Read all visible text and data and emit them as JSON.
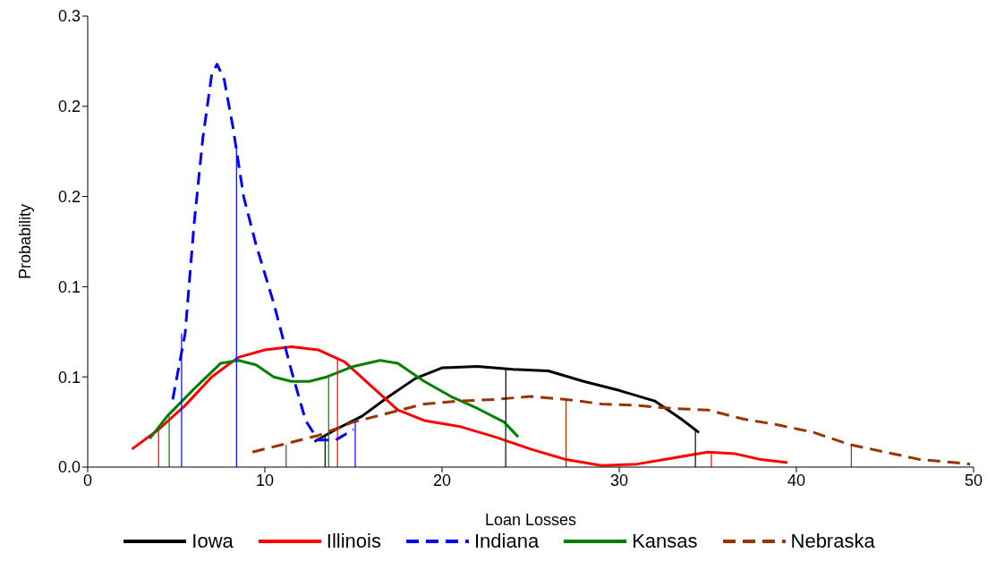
{
  "chart_data": {
    "type": "line",
    "xlabel": "Loan Losses",
    "ylabel": "Probability",
    "xlim": [
      0,
      50
    ],
    "xticks": [
      0,
      10,
      20,
      30,
      40,
      50
    ],
    "ylim": [
      0,
      0.3
    ],
    "yticks": [
      {
        "value": 0,
        "label": "0.0"
      },
      {
        "value": 0.06,
        "label": "0.1"
      },
      {
        "value": 0.12,
        "label": "0.1"
      },
      {
        "value": 0.18,
        "label": "0.2"
      },
      {
        "value": 0.24,
        "label": "0.2"
      },
      {
        "value": 0.3,
        "label": "0.3"
      }
    ],
    "grid": false,
    "legend": "bottom",
    "marker": "none",
    "series": [
      {
        "name": "Iowa",
        "color": "#000000",
        "line_style": "solid",
        "x": [
          12.8,
          14,
          15.5,
          17,
          18.5,
          20,
          22,
          24,
          26,
          28,
          30,
          32,
          33.5,
          34.5
        ],
        "values": [
          0.017,
          0.025,
          0.034,
          0.047,
          0.059,
          0.066,
          0.067,
          0.065,
          0.064,
          0.057,
          0.051,
          0.044,
          0.032,
          0.023
        ]
      },
      {
        "name": "Illinois",
        "color": "#ff0000",
        "line_style": "solid",
        "x": [
          2.5,
          4,
          5.5,
          7,
          8.5,
          10,
          11.5,
          13,
          14.5,
          16,
          17.5,
          19,
          21,
          23,
          25,
          27,
          29,
          31,
          33,
          35,
          36.5,
          38,
          39.5
        ],
        "values": [
          0.012,
          0.025,
          0.041,
          0.06,
          0.073,
          0.078,
          0.08,
          0.078,
          0.07,
          0.054,
          0.038,
          0.031,
          0.027,
          0.02,
          0.012,
          0.005,
          0.001,
          0.002,
          0.006,
          0.01,
          0.009,
          0.005,
          0.003
        ]
      },
      {
        "name": "Indiana",
        "color": "#0000ff",
        "line_style": "dashed",
        "x": [
          4.8,
          5.5,
          6,
          6.5,
          7,
          7.3,
          7.7,
          8.2,
          8.8,
          9.5,
          10.5,
          11.5,
          12.3,
          13,
          14,
          15
        ],
        "values": [
          0.045,
          0.089,
          0.161,
          0.219,
          0.261,
          0.268,
          0.258,
          0.226,
          0.18,
          0.148,
          0.109,
          0.064,
          0.031,
          0.018,
          0.018,
          0.025
        ]
      },
      {
        "name": "Kansas",
        "color": "#008000",
        "line_style": "solid",
        "x": [
          3.5,
          4.5,
          6,
          7.5,
          8.5,
          9.5,
          10.5,
          11.5,
          12.5,
          13.5,
          15,
          16.5,
          17.5,
          19,
          20.5,
          22,
          23.5,
          24.3
        ],
        "values": [
          0.019,
          0.034,
          0.052,
          0.069,
          0.071,
          0.068,
          0.06,
          0.057,
          0.057,
          0.06,
          0.067,
          0.071,
          0.069,
          0.057,
          0.047,
          0.039,
          0.03,
          0.02
        ]
      },
      {
        "name": "Nebraska",
        "color": "#993300",
        "line_style": "dashed",
        "x": [
          9.3,
          11,
          13,
          15,
          17,
          19,
          21,
          23,
          25,
          27,
          29,
          31,
          33,
          35,
          37,
          39,
          41,
          43,
          45,
          47,
          49.8
        ],
        "values": [
          0.01,
          0.015,
          0.021,
          0.03,
          0.036,
          0.042,
          0.044,
          0.045,
          0.047,
          0.045,
          0.042,
          0.041,
          0.039,
          0.038,
          0.032,
          0.028,
          0.023,
          0.015,
          0.01,
          0.005,
          0.002
        ]
      },
      {
        "color": "#000000",
        "line_style": "solid",
        "x": [
          13.4,
          13.4
        ],
        "values": [
          0,
          0.022
        ]
      },
      {
        "color": "#000000",
        "line_style": "solid",
        "x": [
          23.6,
          23.6
        ],
        "values": [
          0,
          0.065
        ]
      },
      {
        "color": "#000000",
        "line_style": "solid",
        "x": [
          34.3,
          34.3
        ],
        "values": [
          0,
          0.025
        ]
      },
      {
        "color": "#ff0000",
        "line_style": "solid",
        "x": [
          4,
          4
        ],
        "values": [
          0,
          0.025
        ]
      },
      {
        "color": "#ff0000",
        "line_style": "solid",
        "x": [
          14.1,
          14.1
        ],
        "values": [
          0,
          0.073
        ]
      },
      {
        "color": "#ff0000",
        "line_style": "solid",
        "x": [
          35.2,
          35.2
        ],
        "values": [
          0,
          0.01
        ]
      },
      {
        "color": "#0000ff",
        "line_style": "solid",
        "x": [
          5.3,
          5.3
        ],
        "values": [
          0,
          0.089
        ]
      },
      {
        "color": "#0000ff",
        "line_style": "solid",
        "x": [
          8.4,
          8.4
        ],
        "values": [
          0,
          0.213
        ]
      },
      {
        "color": "#0000ff",
        "line_style": "solid",
        "x": [
          15.1,
          15.1
        ],
        "values": [
          0,
          0.03
        ]
      },
      {
        "color": "#008000",
        "line_style": "solid",
        "x": [
          4.6,
          4.6
        ],
        "values": [
          0,
          0.034
        ]
      },
      {
        "color": "#008000",
        "line_style": "solid",
        "x": [
          13.6,
          13.6
        ],
        "values": [
          0,
          0.06
        ]
      },
      {
        "color": "#008000",
        "line_style": "solid",
        "x": [
          23.6,
          23.6
        ],
        "values": [
          0,
          0.03
        ]
      },
      {
        "color": "#993300",
        "line_style": "solid",
        "x": [
          11.2,
          11.2
        ],
        "values": [
          0,
          0.015
        ]
      },
      {
        "color": "#993300",
        "line_style": "solid",
        "x": [
          27,
          27
        ],
        "values": [
          0,
          0.045
        ]
      },
      {
        "color": "#993300",
        "line_style": "solid",
        "x": [
          43.1,
          43.1
        ],
        "values": [
          0,
          0.015
        ]
      }
    ]
  }
}
